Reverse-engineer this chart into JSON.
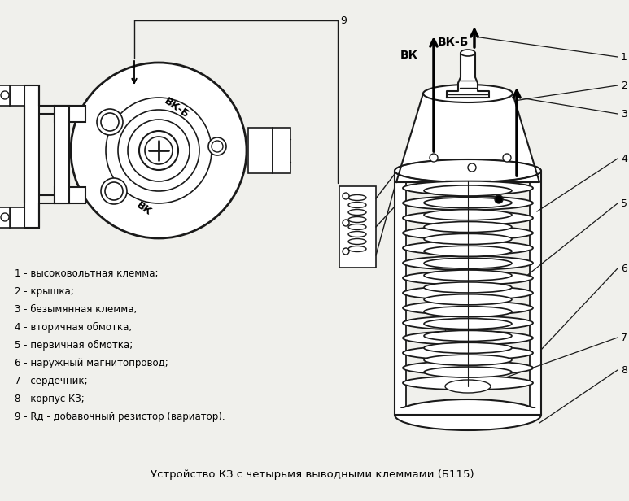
{
  "title": "Устройство КЗ с четырьмя выводными клеммами (Б115).",
  "background_color": "#f0f0ec",
  "legend_items": [
    "1 - высоковольтная клемма;",
    "2 - крышка;",
    "3 - безымянная клемма;",
    "4 - вторичная обмотка;",
    "5 - первичная обмотка;",
    "6 - наружный магнитопровод;",
    "7 - сердечник;",
    "8 - корпус КЗ;",
    "9 - Rд - добавочный резистор (вариатор)."
  ],
  "line_color": "#1a1a1a",
  "arrow_color": "#000000",
  "label_vk_b": "ВК-Б",
  "label_vk": "ВК",
  "figsize": [
    7.73,
    6.16
  ],
  "dpi": 100
}
